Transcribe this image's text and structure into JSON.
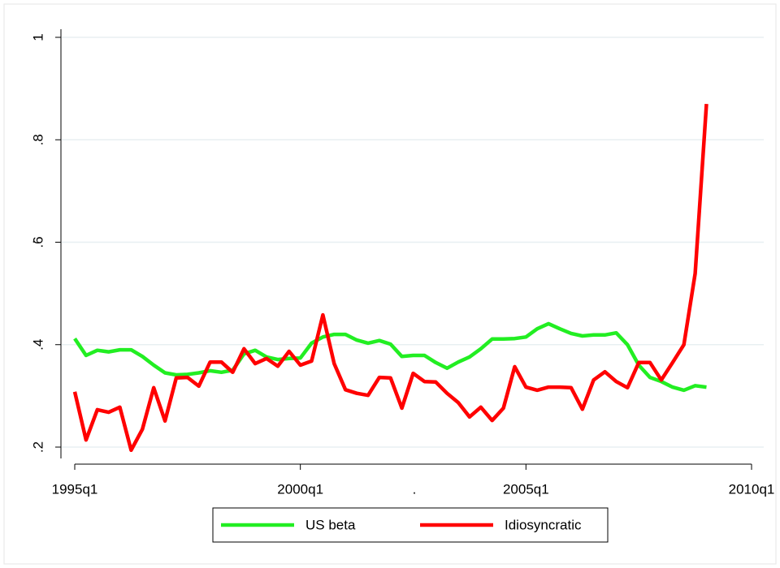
{
  "chart_data": {
    "type": "line",
    "x_title": ".",
    "y_title": ".",
    "x": [
      "1995q1",
      "1995q2",
      "1995q3",
      "1995q4",
      "1996q1",
      "1996q2",
      "1996q3",
      "1996q4",
      "1997q1",
      "1997q2",
      "1997q3",
      "1997q4",
      "1998q1",
      "1998q2",
      "1998q3",
      "1998q4",
      "1999q1",
      "1999q2",
      "1999q3",
      "1999q4",
      "2000q1",
      "2000q2",
      "2000q3",
      "2000q4",
      "2001q1",
      "2001q2",
      "2001q3",
      "2001q4",
      "2002q1",
      "2002q2",
      "2002q3",
      "2002q4",
      "2003q1",
      "2003q2",
      "2003q3",
      "2003q4",
      "2004q1",
      "2004q2",
      "2004q3",
      "2004q4",
      "2005q1",
      "2005q2",
      "2005q3",
      "2005q4",
      "2006q1",
      "2006q2",
      "2006q3",
      "2006q4",
      "2007q1",
      "2007q2",
      "2007q3",
      "2007q4",
      "2008q1",
      "2008q2",
      "2008q3",
      "2008q4",
      "2009q1"
    ],
    "series": [
      {
        "name": "US beta",
        "color": "#22ee22",
        "values": [
          0.412,
          0.379,
          0.389,
          0.386,
          0.39,
          0.39,
          0.377,
          0.36,
          0.345,
          0.341,
          0.342,
          0.345,
          0.349,
          0.346,
          0.35,
          0.382,
          0.389,
          0.376,
          0.371,
          0.373,
          0.374,
          0.403,
          0.415,
          0.42,
          0.42,
          0.409,
          0.403,
          0.408,
          0.401,
          0.377,
          0.379,
          0.379,
          0.365,
          0.354,
          0.366,
          0.376,
          0.392,
          0.411,
          0.411,
          0.412,
          0.415,
          0.431,
          0.441,
          0.431,
          0.422,
          0.417,
          0.419,
          0.419,
          0.423,
          0.4,
          0.36,
          0.336,
          0.328,
          0.317,
          0.311,
          0.32,
          0.317
        ]
      },
      {
        "name": "Idiosyncratic",
        "color": "#ff0000",
        "values": [
          0.308,
          0.214,
          0.273,
          0.268,
          0.278,
          0.194,
          0.235,
          0.316,
          0.251,
          0.335,
          0.336,
          0.319,
          0.366,
          0.366,
          0.346,
          0.392,
          0.363,
          0.373,
          0.358,
          0.387,
          0.36,
          0.368,
          0.458,
          0.363,
          0.312,
          0.305,
          0.301,
          0.336,
          0.335,
          0.276,
          0.344,
          0.328,
          0.327,
          0.305,
          0.287,
          0.259,
          0.278,
          0.252,
          0.276,
          0.357,
          0.317,
          0.311,
          0.317,
          0.317,
          0.316,
          0.274,
          0.331,
          0.347,
          0.328,
          0.316,
          0.365,
          0.365,
          0.331,
          0.365,
          0.4,
          0.539,
          0.87
        ]
      }
    ],
    "xlim": [
      "1995q1",
      "2010q1"
    ],
    "xticks": [
      "1995q1",
      "2000q1",
      "2005q1",
      "2010q1"
    ],
    "ylim": [
      0.2,
      1
    ],
    "yticks": [
      {
        "value": 0.2,
        "label": ".2"
      },
      {
        "value": 0.4,
        "label": ".4"
      },
      {
        "value": 0.6,
        "label": ".6"
      },
      {
        "value": 0.8,
        "label": ".8"
      },
      1
    ],
    "grid": true
  }
}
